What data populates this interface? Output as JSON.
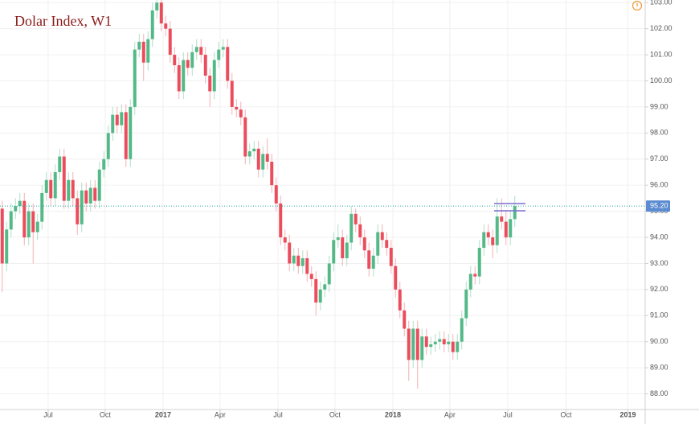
{
  "chart_data": {
    "type": "candlestick",
    "title": "Dolar Index, W1",
    "up_color": "#53b987",
    "down_color": "#eb4d5c",
    "grid": true,
    "xlim": [
      -0.5,
      145.5
    ],
    "ylim": [
      87.4,
      103.1
    ],
    "xticks": [
      {
        "value": 10.4,
        "label": "Jul"
      },
      {
        "value": 23.3,
        "label": "Oct"
      },
      {
        "value": 36.4,
        "label": "2017"
      },
      {
        "value": 49.3,
        "label": "Apr"
      },
      {
        "value": 62.4,
        "label": "Jul"
      },
      {
        "value": 75.3,
        "label": "Oct"
      },
      {
        "value": 88.4,
        "label": "2018"
      },
      {
        "value": 101.3,
        "label": "Apr"
      },
      {
        "value": 114.4,
        "label": "Jul"
      },
      {
        "value": 127.6,
        "label": "Oct"
      },
      {
        "value": 141.6,
        "label": "2019"
      }
    ],
    "yticks": [
      {
        "value": 88,
        "label": "88.00"
      },
      {
        "value": 89,
        "label": "89.00"
      },
      {
        "value": 90,
        "label": "90.00"
      },
      {
        "value": 91,
        "label": "91.00"
      },
      {
        "value": 92,
        "label": "92.00"
      },
      {
        "value": 93,
        "label": "93.00"
      },
      {
        "value": 94,
        "label": "94.00"
      },
      {
        "value": 95,
        "label": "95.00"
      },
      {
        "value": 96,
        "label": "96.00"
      },
      {
        "value": 97,
        "label": "97.00"
      },
      {
        "value": 98,
        "label": "98.00"
      },
      {
        "value": 99,
        "label": "99.00"
      },
      {
        "value": 100,
        "label": "100.00"
      },
      {
        "value": 101,
        "label": "101.00"
      },
      {
        "value": 102,
        "label": "102.00"
      },
      {
        "value": 103,
        "label": "103.00"
      }
    ],
    "last_price": {
      "value": 95.2,
      "label": "95.20"
    },
    "candles": [
      [
        95.1,
        95.4,
        91.9,
        93.0
      ],
      [
        93.0,
        94.6,
        92.7,
        94.3
      ],
      [
        94.3,
        95.3,
        94.0,
        95.0
      ],
      [
        95.0,
        95.5,
        94.7,
        95.2
      ],
      [
        95.2,
        95.7,
        94.9,
        95.4
      ],
      [
        95.4,
        95.7,
        93.7,
        94.0
      ],
      [
        94.0,
        95.3,
        93.7,
        95.0
      ],
      [
        95.0,
        95.3,
        93.0,
        94.2
      ],
      [
        94.2,
        94.9,
        93.9,
        94.6
      ],
      [
        94.6,
        96.0,
        94.3,
        95.7
      ],
      [
        95.7,
        96.5,
        95.4,
        96.2
      ],
      [
        96.2,
        96.5,
        95.2,
        95.5
      ],
      [
        95.5,
        96.8,
        95.2,
        96.5
      ],
      [
        96.5,
        97.4,
        96.2,
        97.1
      ],
      [
        97.1,
        97.4,
        95.1,
        95.4
      ],
      [
        95.4,
        96.5,
        95.1,
        96.2
      ],
      [
        96.2,
        96.5,
        95.2,
        95.5
      ],
      [
        95.5,
        95.8,
        94.1,
        94.5
      ],
      [
        94.5,
        96.1,
        94.2,
        95.8
      ],
      [
        95.8,
        96.1,
        95.0,
        95.3
      ],
      [
        95.3,
        96.2,
        95.0,
        95.9
      ],
      [
        95.9,
        96.2,
        95.1,
        95.4
      ],
      [
        95.4,
        96.9,
        95.1,
        96.6
      ],
      [
        96.6,
        97.3,
        96.3,
        97.0
      ],
      [
        97.0,
        98.3,
        96.7,
        98.0
      ],
      [
        98.0,
        99.0,
        97.7,
        98.7
      ],
      [
        98.7,
        99.0,
        98.0,
        98.3
      ],
      [
        98.3,
        99.1,
        98.0,
        98.8
      ],
      [
        98.8,
        99.1,
        96.7,
        97.0
      ],
      [
        97.0,
        99.3,
        96.7,
        99.0
      ],
      [
        99.0,
        101.5,
        98.7,
        101.2
      ],
      [
        101.2,
        101.8,
        100.9,
        101.5
      ],
      [
        101.5,
        101.8,
        100.0,
        100.7
      ],
      [
        100.7,
        101.9,
        100.4,
        101.6
      ],
      [
        101.6,
        103.0,
        101.3,
        102.7
      ],
      [
        102.7,
        103.2,
        102.4,
        103.0
      ],
      [
        103.0,
        103.2,
        101.9,
        102.2
      ],
      [
        102.2,
        102.5,
        101.7,
        102.0
      ],
      [
        102.0,
        102.3,
        100.7,
        101.0
      ],
      [
        101.0,
        101.3,
        100.3,
        100.6
      ],
      [
        100.6,
        100.9,
        99.3,
        99.6
      ],
      [
        99.6,
        101.1,
        99.3,
        100.8
      ],
      [
        100.8,
        101.1,
        100.2,
        100.5
      ],
      [
        100.5,
        101.4,
        100.2,
        101.1
      ],
      [
        101.1,
        101.6,
        100.8,
        101.3
      ],
      [
        101.3,
        101.6,
        100.7,
        101.0
      ],
      [
        101.0,
        101.3,
        99.9,
        100.2
      ],
      [
        100.2,
        100.5,
        99.0,
        99.6
      ],
      [
        99.6,
        101.1,
        99.3,
        100.8
      ],
      [
        100.8,
        101.5,
        100.5,
        101.2
      ],
      [
        101.2,
        101.6,
        100.9,
        101.3
      ],
      [
        101.3,
        101.6,
        99.7,
        100.0
      ],
      [
        100.0,
        100.3,
        98.7,
        99.0
      ],
      [
        99.0,
        99.3,
        98.6,
        98.9
      ],
      [
        98.9,
        99.2,
        98.3,
        98.6
      ],
      [
        98.6,
        98.9,
        96.8,
        97.1
      ],
      [
        97.1,
        97.6,
        96.8,
        97.3
      ],
      [
        97.3,
        97.7,
        97.0,
        97.4
      ],
      [
        97.4,
        97.7,
        96.3,
        96.6
      ],
      [
        96.6,
        97.5,
        96.3,
        97.2
      ],
      [
        97.2,
        97.8,
        96.6,
        96.9
      ],
      [
        96.9,
        97.2,
        95.7,
        96.0
      ],
      [
        96.0,
        96.3,
        95.0,
        95.3
      ],
      [
        95.3,
        95.6,
        93.7,
        94.0
      ],
      [
        94.0,
        94.3,
        93.5,
        93.8
      ],
      [
        93.8,
        94.1,
        92.7,
        93.0
      ],
      [
        93.0,
        93.6,
        92.7,
        93.3
      ],
      [
        93.3,
        93.6,
        92.6,
        92.9
      ],
      [
        92.9,
        93.5,
        92.6,
        93.2
      ],
      [
        93.2,
        93.5,
        92.3,
        92.6
      ],
      [
        92.6,
        92.9,
        92.1,
        92.4
      ],
      [
        92.4,
        92.7,
        91.0,
        91.5
      ],
      [
        91.5,
        92.3,
        91.2,
        92.0
      ],
      [
        92.0,
        92.5,
        91.7,
        92.2
      ],
      [
        92.2,
        93.3,
        91.9,
        93.0
      ],
      [
        93.0,
        94.2,
        92.7,
        93.9
      ],
      [
        93.9,
        94.5,
        93.6,
        94.0
      ],
      [
        94.0,
        94.3,
        92.9,
        93.2
      ],
      [
        93.2,
        94.1,
        92.9,
        93.8
      ],
      [
        93.8,
        95.2,
        93.5,
        94.9
      ],
      [
        94.9,
        95.1,
        94.2,
        94.5
      ],
      [
        94.5,
        94.8,
        93.7,
        94.0
      ],
      [
        94.0,
        94.3,
        93.2,
        93.5
      ],
      [
        93.5,
        93.8,
        92.5,
        92.8
      ],
      [
        92.8,
        93.6,
        92.5,
        93.3
      ],
      [
        93.3,
        94.5,
        93.0,
        94.2
      ],
      [
        94.2,
        94.5,
        93.6,
        93.9
      ],
      [
        93.9,
        94.2,
        93.3,
        93.6
      ],
      [
        93.6,
        93.9,
        92.6,
        92.9
      ],
      [
        92.9,
        93.2,
        91.7,
        92.0
      ],
      [
        92.0,
        92.3,
        90.9,
        91.2
      ],
      [
        91.2,
        91.5,
        90.2,
        90.5
      ],
      [
        90.5,
        90.8,
        88.5,
        89.3
      ],
      [
        89.3,
        90.8,
        89.0,
        90.5
      ],
      [
        90.5,
        90.8,
        88.2,
        89.3
      ],
      [
        89.3,
        90.5,
        89.0,
        90.2
      ],
      [
        90.2,
        90.5,
        89.5,
        89.8
      ],
      [
        89.8,
        90.2,
        89.5,
        89.9
      ],
      [
        89.9,
        90.3,
        89.6,
        90.0
      ],
      [
        90.0,
        90.4,
        89.7,
        90.1
      ],
      [
        90.1,
        90.4,
        89.6,
        89.9
      ],
      [
        89.9,
        90.3,
        89.6,
        90.0
      ],
      [
        90.0,
        90.3,
        89.3,
        89.6
      ],
      [
        89.6,
        90.3,
        89.3,
        90.0
      ],
      [
        90.0,
        91.2,
        89.7,
        90.9
      ],
      [
        90.9,
        92.3,
        90.6,
        92.0
      ],
      [
        92.0,
        92.9,
        91.7,
        92.6
      ],
      [
        92.6,
        92.9,
        92.2,
        92.5
      ],
      [
        92.5,
        93.9,
        92.2,
        93.6
      ],
      [
        93.6,
        94.5,
        93.3,
        94.2
      ],
      [
        94.2,
        94.5,
        93.7,
        94.0
      ],
      [
        94.0,
        94.3,
        93.2,
        93.7
      ],
      [
        93.7,
        95.5,
        93.4,
        94.8
      ],
      [
        94.8,
        95.5,
        94.3,
        94.6
      ],
      [
        94.6,
        95.0,
        93.7,
        94.0
      ],
      [
        94.0,
        95.0,
        93.7,
        94.7
      ],
      [
        94.7,
        95.6,
        94.4,
        95.2
      ]
    ]
  }
}
